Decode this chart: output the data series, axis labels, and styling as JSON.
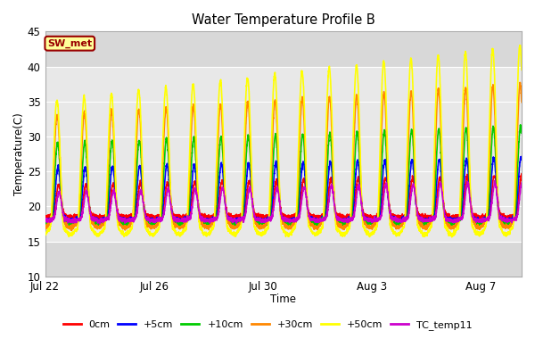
{
  "title": "Water Temperature Profile B",
  "xlabel": "Time",
  "ylabel": "Temperature(C)",
  "ylim": [
    10,
    45
  ],
  "xlim_days": [
    0,
    17.5
  ],
  "tick_dates": [
    "Jul 22",
    "Jul 26",
    "Jul 30",
    "Aug 3",
    "Aug 7"
  ],
  "tick_positions": [
    0,
    4,
    8,
    12,
    16
  ],
  "shaded_ymin": 15,
  "shaded_ymax": 40,
  "lines": {
    "0cm": {
      "color": "#ff0000",
      "lw": 1.2
    },
    "+5cm": {
      "color": "#0000ff",
      "lw": 1.2
    },
    "+10cm": {
      "color": "#00cc00",
      "lw": 1.2
    },
    "+30cm": {
      "color": "#ff8800",
      "lw": 1.2
    },
    "+50cm": {
      "color": "#ffff00",
      "lw": 1.2
    },
    "TC_temp11": {
      "color": "#cc00cc",
      "lw": 1.2
    }
  },
  "annotation_text": "SW_met",
  "annotation_bg": "#ffff99",
  "annotation_edge": "#990000",
  "background_color": "#ffffff",
  "plot_bg_outer": "#d8d8d8",
  "plot_bg_inner": "#e8e8e8",
  "yticks": [
    10,
    15,
    20,
    25,
    30,
    35,
    40,
    45
  ],
  "n_cycles": 17,
  "cycle_period_days": 1.0
}
